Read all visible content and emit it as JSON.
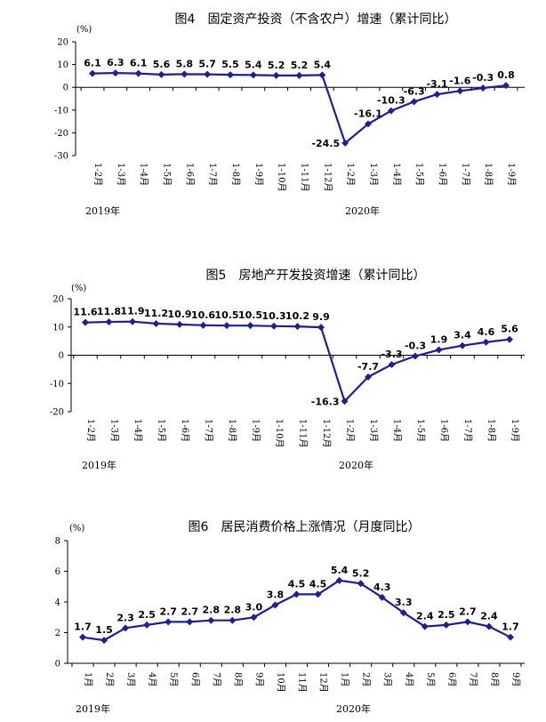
{
  "accent_color": "#1f1f8f",
  "chart_data": [
    {
      "type": "line",
      "title": "图4　固定资产投资（不含农户）增速（累计同比）",
      "unit": "(%)",
      "ylim": [
        -30,
        20
      ],
      "yticks": [
        20,
        10,
        0,
        -10,
        -20,
        -30
      ],
      "categories": [
        "1-2月",
        "1-3月",
        "1-4月",
        "1-5月",
        "1-6月",
        "1-7月",
        "1-8月",
        "1-9月",
        "1-10月",
        "1-11月",
        "1-12月",
        "1-2月",
        "1-3月",
        "1-4月",
        "1-5月",
        "1-6月",
        "1-7月",
        "1-8月",
        "1-9月"
      ],
      "values": [
        6.1,
        6.3,
        6.1,
        5.6,
        5.8,
        5.7,
        5.5,
        5.4,
        5.2,
        5.2,
        5.4,
        -24.5,
        -16.1,
        -10.3,
        -6.3,
        -3.1,
        -1.6,
        -0.3,
        0.8
      ],
      "value_labels": [
        "6.1",
        "6.3",
        "6.1",
        "5.6",
        "5.8",
        "5.7",
        "5.5",
        "5.4",
        "5.2",
        "5.2",
        "5.4",
        "-24.5",
        "-16.1",
        "-10.3",
        "-6.3",
        "-3.1",
        "-1.6",
        "-0.3",
        "0.8"
      ],
      "year_labels": [
        "2019年",
        "2020年"
      ],
      "grid": false
    },
    {
      "type": "line",
      "title": "图5　房地产开发投资增速（累计同比）",
      "unit": "(%)",
      "ylim": [
        -20,
        20
      ],
      "yticks": [
        20,
        10,
        0,
        -10,
        -20
      ],
      "categories": [
        "1-2月",
        "1-3月",
        "1-4月",
        "1-5月",
        "1-6月",
        "1-7月",
        "1-8月",
        "1-9月",
        "1-10月",
        "1-11月",
        "1-12月",
        "1-2月",
        "1-3月",
        "1-4月",
        "1-5月",
        "1-6月",
        "1-7月",
        "1-8月",
        "1-9月"
      ],
      "values": [
        11.6,
        11.8,
        11.9,
        11.2,
        10.9,
        10.6,
        10.5,
        10.5,
        10.3,
        10.2,
        9.9,
        -16.3,
        -7.7,
        -3.3,
        -0.3,
        1.9,
        3.4,
        4.6,
        5.6
      ],
      "value_labels": [
        "11.6",
        "11.8",
        "11.9",
        "11.2",
        "10.9",
        "10.6",
        "10.5",
        "10.5",
        "10.3",
        "10.2",
        "9.9",
        "-16.3",
        "-7.7",
        "-3.3",
        "-0.3",
        "1.9",
        "3.4",
        "4.6",
        "5.6"
      ],
      "year_labels": [
        "2019年",
        "2020年"
      ],
      "grid": false
    },
    {
      "type": "line",
      "title": "图6　居民消费价格上涨情况（月度同比）",
      "unit": "(%)",
      "ylim": [
        0,
        8
      ],
      "yticks": [
        8,
        6,
        4,
        2,
        0
      ],
      "categories": [
        "1月",
        "2月",
        "3月",
        "4月",
        "5月",
        "6月",
        "7月",
        "8月",
        "9月",
        "10月",
        "11月",
        "12月",
        "1月",
        "2月",
        "3月",
        "4月",
        "5月",
        "6月",
        "7月",
        "8月",
        "9月"
      ],
      "values": [
        1.7,
        1.5,
        2.3,
        2.5,
        2.7,
        2.7,
        2.8,
        2.8,
        3.0,
        3.8,
        4.5,
        4.5,
        5.4,
        5.2,
        4.3,
        3.3,
        2.4,
        2.5,
        2.7,
        2.4,
        1.7
      ],
      "value_labels": [
        "1.7",
        "1.5",
        "2.3",
        "2.5",
        "2.7",
        "2.7",
        "2.8",
        "2.8",
        "3.0",
        "3.8",
        "4.5",
        "4.5",
        "5.4",
        "5.2",
        "4.3",
        "3.3",
        "2.4",
        "2.5",
        "2.7",
        "2.4",
        "1.7"
      ],
      "year_labels": [
        "2019年",
        "2020年"
      ],
      "grid": false
    }
  ]
}
